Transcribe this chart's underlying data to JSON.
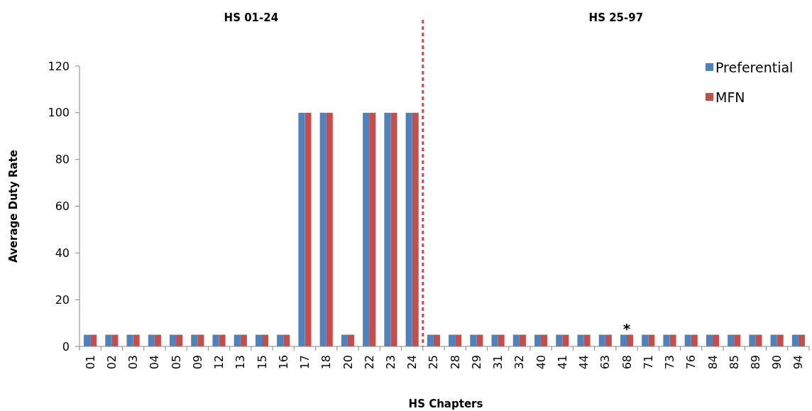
{
  "chart_data": {
    "type": "bar",
    "xlabel": "HS Chapters",
    "ylabel": "Average Duty Rate",
    "categories": [
      "01",
      "02",
      "03",
      "04",
      "05",
      "09",
      "12",
      "13",
      "15",
      "16",
      "17",
      "18",
      "20",
      "22",
      "23",
      "24",
      "25",
      "28",
      "29",
      "31",
      "32",
      "40",
      "41",
      "44",
      "63",
      "68",
      "71",
      "73",
      "76",
      "84",
      "85",
      "89",
      "90",
      "94"
    ],
    "series": [
      {
        "name": "Preferential",
        "color": "#4f81bd",
        "values": [
          5,
          5,
          5,
          5,
          5,
          5,
          5,
          5,
          5,
          5,
          100,
          100,
          5,
          100,
          100,
          100,
          5,
          5,
          5,
          5,
          5,
          5,
          5,
          5,
          5,
          5,
          5,
          5,
          5,
          5,
          5,
          5,
          5,
          5
        ]
      },
      {
        "name": "MFN",
        "color": "#c0504d",
        "values": [
          5,
          5,
          5,
          5,
          5,
          5,
          5,
          5,
          5,
          5,
          100,
          100,
          5,
          100,
          100,
          100,
          5,
          5,
          5,
          5,
          5,
          5,
          5,
          5,
          5,
          5,
          5,
          5,
          5,
          5,
          5,
          5,
          5,
          5
        ]
      }
    ],
    "ylim": [
      0,
      120
    ],
    "yticks": [
      0,
      20,
      40,
      60,
      80,
      100,
      120
    ],
    "grid": false,
    "legend": "top right",
    "ref_lines": [
      {
        "axis": "x",
        "value": "24",
        "color": "#c0504d",
        "line_style": "dashed"
      }
    ],
    "annotations": [
      "HS 01-24",
      "HS 25-97",
      {
        "text": "*",
        "x": "68",
        "y": 5
      }
    ]
  }
}
